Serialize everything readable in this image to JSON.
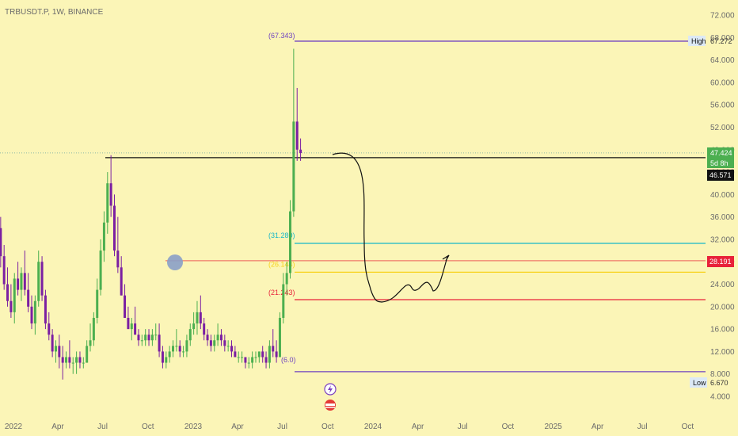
{
  "header": {
    "symbol": "TRBUSDT.P, 1W, BINANCE"
  },
  "colors": {
    "background": "#fbf5b7",
    "up": "#4caf50",
    "down": "#7b1fa2",
    "purple_line": "#6f42c1",
    "black_line": "#111111",
    "cyan_line": "#15b7c9",
    "orange_line": "#f07a6a",
    "yellow_line": "#f7d21a",
    "red_line": "#e8223a",
    "dotted_line": "#8fb9a6",
    "circle": "#8aa0c8"
  },
  "chart_data": {
    "type": "candlestick",
    "title": "TRBUSDT.P, 1W, BINANCE",
    "x_start": "2021-11-22",
    "interval": "1W",
    "x_ticks": [
      "2022",
      "Apr",
      "Jul",
      "Oct",
      "2023",
      "Apr",
      "Jul",
      "Oct",
      "2024",
      "Apr",
      "Jul",
      "Oct",
      "2025",
      "Apr",
      "Jul",
      "Oct"
    ],
    "y_ticks": [
      "4.000",
      "8.000",
      "12.000",
      "16.000",
      "20.000",
      "24.000",
      "28.000",
      "32.000",
      "36.000",
      "40.000",
      "44.000",
      "48.000",
      "52.000",
      "56.000",
      "60.000",
      "64.000",
      "68.000",
      "72.000"
    ],
    "ylim": [
      4,
      72
    ],
    "candles": [
      [
        29,
        35,
        27,
        33
      ],
      [
        33,
        37,
        28,
        34
      ],
      [
        34,
        36,
        27,
        29
      ],
      [
        29,
        31,
        23,
        24
      ],
      [
        24,
        27,
        20,
        21
      ],
      [
        21,
        24,
        18,
        19
      ],
      [
        19,
        26,
        17,
        25
      ],
      [
        25,
        28,
        22,
        23
      ],
      [
        23,
        27,
        21,
        26
      ],
      [
        26,
        30,
        22,
        23
      ],
      [
        23,
        26,
        19,
        20
      ],
      [
        20,
        22,
        16,
        17
      ],
      [
        17,
        22,
        15,
        21
      ],
      [
        21,
        30,
        20,
        28
      ],
      [
        28,
        29,
        21,
        22
      ],
      [
        22,
        23,
        16,
        17
      ],
      [
        17,
        19,
        14,
        15
      ],
      [
        15,
        16,
        11,
        12
      ],
      [
        12,
        14,
        10,
        13
      ],
      [
        13,
        15,
        9,
        11
      ],
      [
        11,
        13,
        7,
        10
      ],
      [
        10,
        12,
        9,
        11
      ],
      [
        11,
        14,
        9,
        10
      ],
      [
        10,
        11,
        8,
        10
      ],
      [
        10,
        12,
        8,
        11
      ],
      [
        11,
        12,
        9,
        10
      ],
      [
        10,
        11,
        9,
        10
      ],
      [
        10,
        14,
        10,
        13
      ],
      [
        13,
        17,
        12,
        14
      ],
      [
        14,
        19,
        13,
        18
      ],
      [
        18,
        25,
        17,
        23
      ],
      [
        23,
        32,
        22,
        30
      ],
      [
        30,
        37,
        28,
        35
      ],
      [
        35,
        44,
        33,
        42
      ],
      [
        42,
        47,
        36,
        38
      ],
      [
        38,
        40,
        29,
        30
      ],
      [
        30,
        36,
        26,
        27
      ],
      [
        27,
        29,
        22,
        22
      ],
      [
        22,
        24,
        18,
        18
      ],
      [
        18,
        20,
        16,
        16
      ],
      [
        16,
        18,
        14,
        17
      ],
      [
        17,
        20,
        15,
        15
      ],
      [
        15,
        16,
        13,
        14
      ],
      [
        14,
        15,
        13,
        14
      ],
      [
        14,
        16,
        13,
        15
      ],
      [
        15,
        16,
        13,
        14
      ],
      [
        14,
        16,
        13,
        15
      ],
      [
        15,
        17,
        14,
        15
      ],
      [
        15,
        17,
        11,
        12
      ],
      [
        12,
        13,
        9,
        10
      ],
      [
        10,
        12,
        9,
        11
      ],
      [
        11,
        13,
        10,
        12
      ],
      [
        12,
        14,
        11,
        13
      ],
      [
        13,
        16,
        12,
        13
      ],
      [
        13,
        14,
        11,
        12
      ],
      [
        12,
        13,
        11,
        12
      ],
      [
        12,
        15,
        11,
        14
      ],
      [
        14,
        17,
        13,
        16
      ],
      [
        16,
        19,
        15,
        17
      ],
      [
        17,
        21,
        15,
        19
      ],
      [
        19,
        22,
        16,
        17
      ],
      [
        17,
        18,
        14,
        15
      ],
      [
        15,
        16,
        13,
        14
      ],
      [
        14,
        15,
        12,
        13
      ],
      [
        13,
        15,
        12,
        14
      ],
      [
        14,
        17,
        13,
        15
      ],
      [
        15,
        16,
        13,
        14
      ],
      [
        14,
        15,
        12,
        13
      ],
      [
        13,
        14,
        12,
        13
      ],
      [
        13,
        14,
        11,
        12
      ],
      [
        12,
        13,
        11,
        11
      ],
      [
        11,
        12,
        10,
        11
      ],
      [
        11,
        12,
        10,
        11
      ],
      [
        11,
        11,
        9,
        10
      ],
      [
        10,
        11,
        9,
        10
      ],
      [
        10,
        12,
        9,
        11
      ],
      [
        11,
        12,
        10,
        11
      ],
      [
        11,
        12,
        10,
        12
      ],
      [
        12,
        13,
        10,
        11
      ],
      [
        11,
        12,
        9,
        10
      ],
      [
        10,
        14,
        9,
        13
      ],
      [
        13,
        16,
        11,
        12
      ],
      [
        12,
        14,
        10,
        11
      ],
      [
        11,
        19,
        11,
        18
      ],
      [
        18,
        26,
        17,
        24
      ],
      [
        24,
        28,
        22,
        26
      ],
      [
        26,
        39,
        25,
        37
      ],
      [
        37,
        66,
        36,
        53
      ],
      [
        53,
        59,
        46,
        48
      ],
      [
        48,
        50,
        46,
        47.4
      ]
    ],
    "hlines": [
      {
        "label": "(67.343)",
        "value": 67.343,
        "color": "#6f42c1"
      },
      {
        "label": "",
        "value": 46.571,
        "color": "#111111"
      },
      {
        "label": "(31.280)",
        "value": 31.28,
        "color": "#15b7c9"
      },
      {
        "label": "",
        "value": 28.191,
        "color": "#f07a6a"
      },
      {
        "label": "(26.144)",
        "value": 26.144,
        "color": "#f7d21a"
      },
      {
        "label": "(21.243)",
        "value": 21.243,
        "color": "#e8223a"
      },
      {
        "label": "",
        "value": 8.4,
        "color": "#6f42c1"
      }
    ],
    "badges": {
      "high_label": "High",
      "high_value": "67.272",
      "low_label": "Low",
      "low_value": "6.670",
      "price": "47.424",
      "countdown": "5d 8h",
      "level": "46.571",
      "alert": "28.191",
      "bottom_label": "(6.0)"
    }
  }
}
